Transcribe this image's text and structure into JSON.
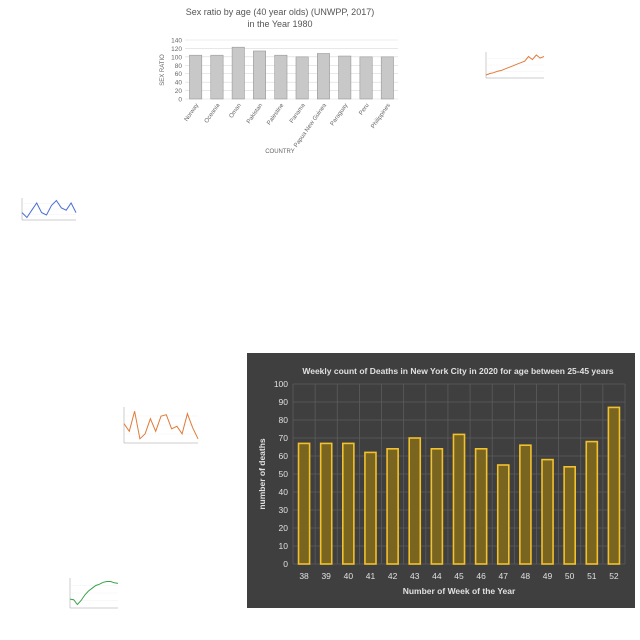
{
  "chart_data": [
    {
      "type": "bar",
      "title": "Sex ratio by age (40 year olds) (UNWPP, 2017)",
      "subtitle": "in the Year 1980",
      "xlabel": "COUNTRY",
      "ylabel": "SEX RATIO",
      "ylim": [
        0,
        140
      ],
      "yticks": [
        0,
        20,
        40,
        60,
        80,
        100,
        120,
        140
      ],
      "categories": [
        "Norway",
        "Oceania",
        "Oman",
        "Pakistan",
        "Palestine",
        "Panama",
        "Papua New Guinea",
        "Paraguay",
        "Peru",
        "Philippines"
      ],
      "values": [
        104,
        104,
        123,
        114,
        104,
        100,
        108,
        102,
        100,
        100
      ],
      "grid": true,
      "colors": {
        "bar": "#c8c8c8",
        "bar_edge": "#8c8c8c"
      }
    },
    {
      "type": "line",
      "x": [
        1,
        2,
        3,
        4,
        5,
        6,
        7,
        8,
        9,
        10,
        11,
        12,
        13,
        14,
        15,
        16
      ],
      "values": [
        10,
        11,
        11.5,
        12.5,
        13,
        14,
        15,
        16,
        17,
        18,
        19,
        22,
        20,
        23,
        21,
        22
      ],
      "colors": {
        "line": "#e07b39"
      }
    },
    {
      "type": "line",
      "x": [
        1,
        2,
        3,
        4,
        5,
        6,
        7,
        8,
        9,
        10,
        11,
        12
      ],
      "values": [
        52,
        50,
        53,
        56,
        52,
        51,
        55,
        57,
        54,
        53,
        56,
        52
      ],
      "colors": {
        "line": "#4a6fd4"
      }
    },
    {
      "type": "line",
      "x": [
        1,
        2,
        3,
        4,
        5,
        6,
        7,
        8,
        9,
        10,
        11,
        12,
        13,
        14,
        15
      ],
      "values": [
        60,
        45,
        85,
        30,
        40,
        70,
        45,
        75,
        78,
        50,
        55,
        40,
        80,
        52,
        30
      ],
      "colors": {
        "line": "#e07b39"
      }
    },
    {
      "type": "line",
      "x": [
        1,
        2,
        3,
        4,
        5,
        6,
        7,
        8,
        9,
        10,
        11,
        12,
        13,
        14
      ],
      "values": [
        30,
        28,
        10,
        25,
        45,
        60,
        70,
        80,
        85,
        92,
        95,
        95,
        90,
        88
      ],
      "colors": {
        "line": "#3aa24a"
      }
    },
    {
      "type": "bar",
      "title": "Weekly count of Deaths in New York City in 2020 for age between 25-45 years",
      "xlabel": "Number of Week of the Year",
      "ylabel": "number of deaths",
      "ylim": [
        0,
        100
      ],
      "yticks": [
        0,
        10,
        20,
        30,
        40,
        50,
        60,
        70,
        80,
        90,
        100
      ],
      "categories": [
        "38",
        "39",
        "40",
        "41",
        "42",
        "43",
        "44",
        "45",
        "46",
        "47",
        "48",
        "49",
        "50",
        "51",
        "52"
      ],
      "values": [
        67,
        67,
        67,
        62,
        64,
        70,
        64,
        72,
        64,
        55,
        66,
        58,
        54,
        68,
        87
      ],
      "grid": true,
      "colors": {
        "background": "#3f3f3f",
        "bar_fill": "#7a6520",
        "bar_edge": "#f2c12e",
        "text": "#e0e0e0",
        "grid": "#5c5c5c"
      }
    }
  ]
}
